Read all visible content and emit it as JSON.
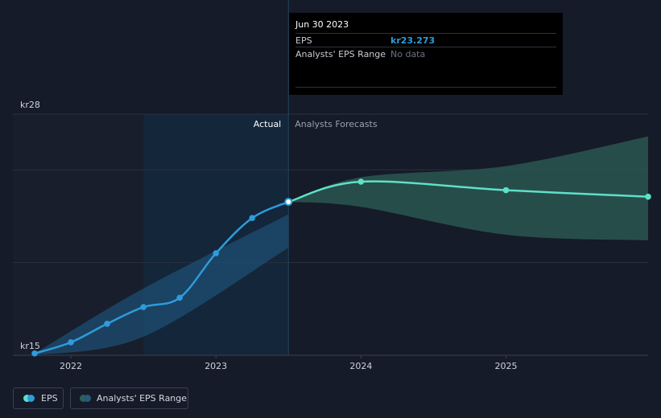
{
  "chart_data": {
    "type": "line",
    "y_axis": {
      "min": 15,
      "max": 28,
      "tick_labels": [
        "kr28",
        "kr15"
      ],
      "ylim": [
        15,
        28
      ]
    },
    "x_axis": {
      "tick_labels": [
        "2022",
        "2023",
        "2024",
        "2025"
      ],
      "xlim": [
        2021.6,
        2025.98
      ]
    },
    "regions": {
      "actual_label": "Actual",
      "forecast_label": "Analysts Forecasts",
      "divider_x": 2023.5
    },
    "series": [
      {
        "name": "EPS",
        "color": "#2d9cdb",
        "points": [
          {
            "x": 2021.75,
            "y": 15.1
          },
          {
            "x": 2022.0,
            "y": 15.7
          },
          {
            "x": 2022.25,
            "y": 16.7
          },
          {
            "x": 2022.5,
            "y": 17.6
          },
          {
            "x": 2022.75,
            "y": 18.1
          },
          {
            "x": 2023.0,
            "y": 20.5
          },
          {
            "x": 2023.25,
            "y": 22.4
          },
          {
            "x": 2023.5,
            "y": 23.273
          }
        ]
      },
      {
        "name": "EPS Forecast",
        "color": "#5ee0c8",
        "points": [
          {
            "x": 2023.5,
            "y": 23.273
          },
          {
            "x": 2024.0,
            "y": 24.36
          },
          {
            "x": 2025.0,
            "y": 23.9
          },
          {
            "x": 2025.98,
            "y": 23.55
          }
        ]
      }
    ],
    "ranges": [
      {
        "name": "Analysts' EPS Range",
        "upper": [
          {
            "x": 2021.75,
            "y": 15.1
          },
          {
            "x": 2022.5,
            "y": 18.6
          },
          {
            "x": 2023.5,
            "y": 22.6
          }
        ],
        "lower": [
          {
            "x": 2021.75,
            "y": 15.0
          },
          {
            "x": 2022.5,
            "y": 16.0
          },
          {
            "x": 2023.5,
            "y": 20.8
          }
        ]
      },
      {
        "name": "Analysts' EPS Range",
        "upper": [
          {
            "x": 2023.5,
            "y": 23.273
          },
          {
            "x": 2024.0,
            "y": 24.6
          },
          {
            "x": 2025.0,
            "y": 25.2
          },
          {
            "x": 2025.98,
            "y": 26.8
          }
        ],
        "lower": [
          {
            "x": 2023.5,
            "y": 23.273
          },
          {
            "x": 2024.0,
            "y": 23.0
          },
          {
            "x": 2025.0,
            "y": 21.5
          },
          {
            "x": 2025.98,
            "y": 21.2
          }
        ]
      }
    ],
    "grid": true,
    "legend": [
      {
        "label": "EPS",
        "color": "#2d9cdb"
      },
      {
        "label": "Analysts' EPS Range",
        "color": "#2f5f5a"
      }
    ],
    "legend_position": "bottom-left"
  },
  "tooltip": {
    "date": "Jun 30 2023",
    "rows": [
      {
        "key": "EPS",
        "value": "kr23.273",
        "value_color": "#2d9cdb"
      },
      {
        "key": "Analysts' EPS Range",
        "value": "No data",
        "value_color": "#6b7280"
      }
    ]
  }
}
